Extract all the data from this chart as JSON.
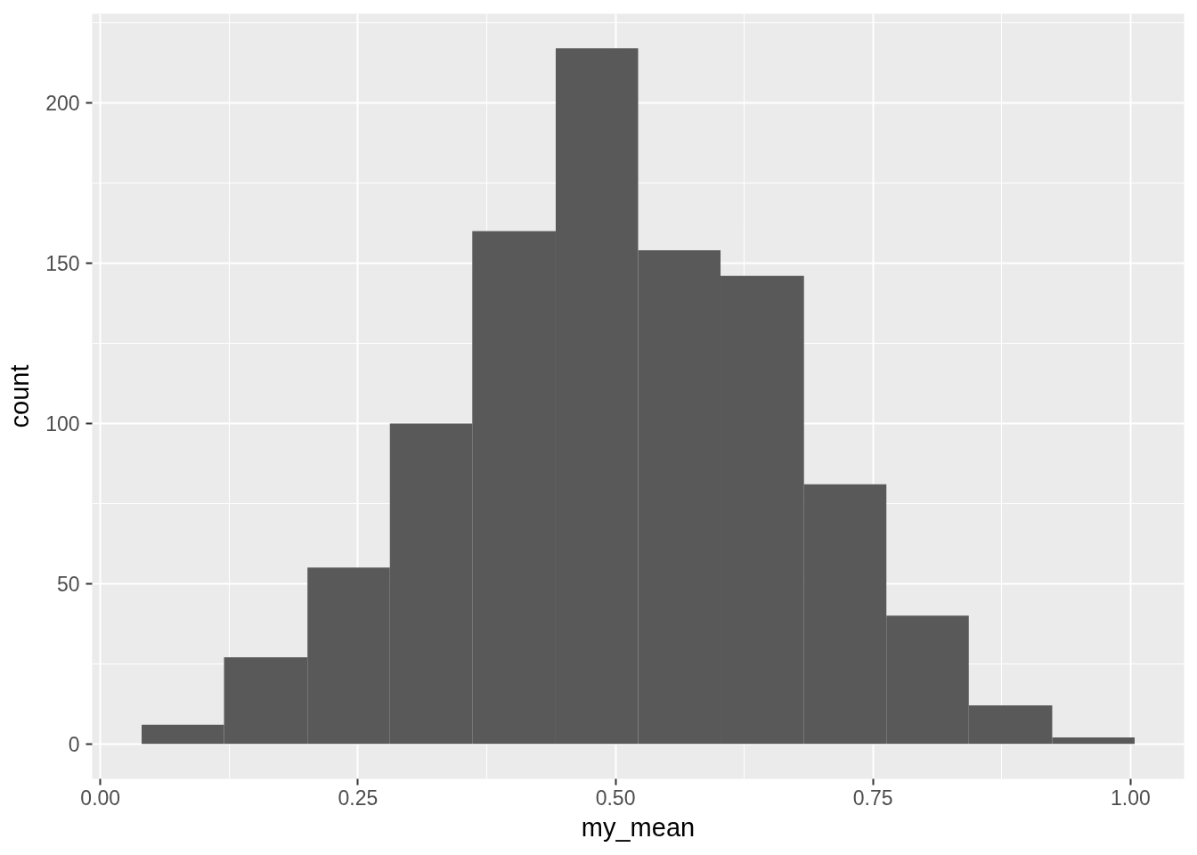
{
  "chart_data": {
    "type": "histogram",
    "xlabel": "my_mean",
    "ylabel": "count",
    "bins": [
      0.04,
      0.12,
      0.201,
      0.281,
      0.361,
      0.442,
      0.522,
      0.602,
      0.683,
      0.763,
      0.843,
      0.924,
      1.004
    ],
    "values": [
      6,
      27,
      55,
      100,
      160,
      217,
      154,
      146,
      81,
      40,
      12,
      2
    ],
    "color": "#595959",
    "xlim": [
      -0.008,
      1.052
    ],
    "ylim": [
      -10.9,
      227.8
    ],
    "xticks": [
      {
        "value": 0,
        "label": "0.00"
      },
      {
        "value": 0.25,
        "label": "0.25"
      },
      {
        "value": 0.5,
        "label": "0.50"
      },
      {
        "value": 0.75,
        "label": "0.75"
      },
      {
        "value": 1,
        "label": "1.00"
      }
    ],
    "yticks": [
      0,
      50,
      100,
      150,
      200
    ],
    "grid": true
  }
}
